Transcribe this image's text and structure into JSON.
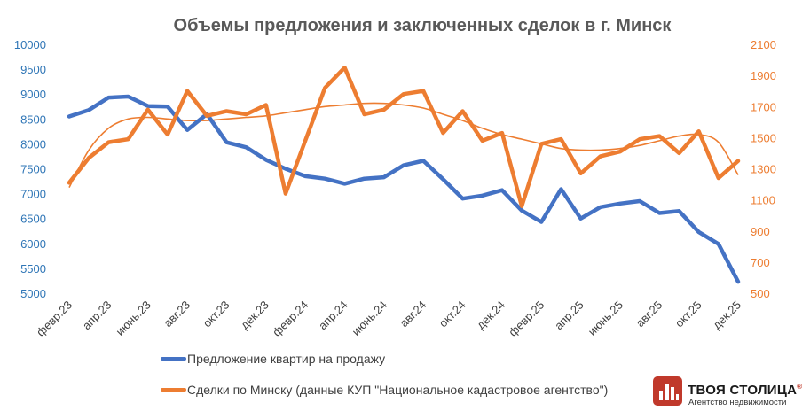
{
  "chart_data": {
    "type": "line",
    "title": "Объемы предложения и заключенных сделок в г. Минск",
    "categories": [
      "февр.23",
      "мар.23",
      "апр.23",
      "май.23",
      "июнь.23",
      "июль.23",
      "авг.23",
      "сент.23",
      "окт.23",
      "нояб.23",
      "дек.23",
      "янв.24",
      "февр.24",
      "мар.24",
      "апр.24",
      "май.24",
      "июнь.24",
      "июль.24",
      "авг.24",
      "сент.24",
      "окт.24",
      "нояб.24",
      "дек.24",
      "янв.25",
      "февр.25",
      "мар.25",
      "апр.25",
      "май.25",
      "июнь.25",
      "июль.25",
      "авг.25",
      "сент.25",
      "окт.25",
      "нояб.25",
      "дек.25"
    ],
    "xticks": [
      "февр.23",
      "апр.23",
      "июнь.23",
      "авг.23",
      "окт.23",
      "дек.23",
      "февр.24",
      "апр.24",
      "июнь.24",
      "авг.24",
      "окт.24",
      "дек.24",
      "февр.25",
      "апр.25",
      "июнь.25",
      "авг.25",
      "окт.25",
      "дек.25"
    ],
    "left_axis": {
      "min": 5000,
      "max": 10000,
      "ticks": [
        "10000",
        "9500",
        "9000",
        "8500",
        "8000",
        "7500",
        "7000",
        "6500",
        "6000",
        "5500",
        "5000"
      ]
    },
    "right_axis": {
      "min": 500,
      "max": 2100,
      "ticks": [
        "2100",
        "1900",
        "1700",
        "1500",
        "1300",
        "1100",
        "900",
        "700",
        "500"
      ]
    },
    "series": [
      {
        "name": "Предложение квартир на продажу",
        "axis": "left",
        "color": "#4472C4",
        "values": [
          8550,
          8680,
          8930,
          8950,
          8760,
          8750,
          8280,
          8600,
          8030,
          7930,
          7680,
          7500,
          7350,
          7300,
          7200,
          7300,
          7330,
          7570,
          7660,
          7290,
          6900,
          6960,
          7070,
          6660,
          6430,
          7090,
          6500,
          6730,
          6800,
          6850,
          6610,
          6650,
          6230,
          5990,
          5230
        ]
      },
      {
        "name": "Сделки по Минску (данные КУП \"Национальное кадастровое агентство\")",
        "axis": "right",
        "color": "#ED7D31",
        "values": [
          1210,
          1370,
          1470,
          1490,
          1680,
          1520,
          1800,
          1640,
          1670,
          1650,
          1710,
          1140,
          1480,
          1820,
          1950,
          1650,
          1680,
          1780,
          1800,
          1530,
          1670,
          1480,
          1530,
          1060,
          1460,
          1490,
          1270,
          1380,
          1410,
          1490,
          1510,
          1400,
          1540,
          1240,
          1350
        ]
      }
    ],
    "trendline": {
      "series": "Сделки по Минску (данные КУП \"Национальное кадастровое агентство\")",
      "color": "#ED7D31",
      "values": [
        1180,
        1420,
        1560,
        1620,
        1630,
        1620,
        1610,
        1610,
        1620,
        1630,
        1640,
        1660,
        1680,
        1700,
        1710,
        1720,
        1720,
        1710,
        1690,
        1650,
        1610,
        1560,
        1520,
        1490,
        1460,
        1430,
        1420,
        1420,
        1430,
        1450,
        1480,
        1510,
        1520,
        1470,
        1260
      ]
    },
    "legend_position": "bottom",
    "grid": false
  },
  "logo": {
    "name": "ТВОЯ СТОЛИЦА",
    "registered": "®",
    "tagline": "Агентство недвижимости",
    "color": "#C0392B"
  }
}
